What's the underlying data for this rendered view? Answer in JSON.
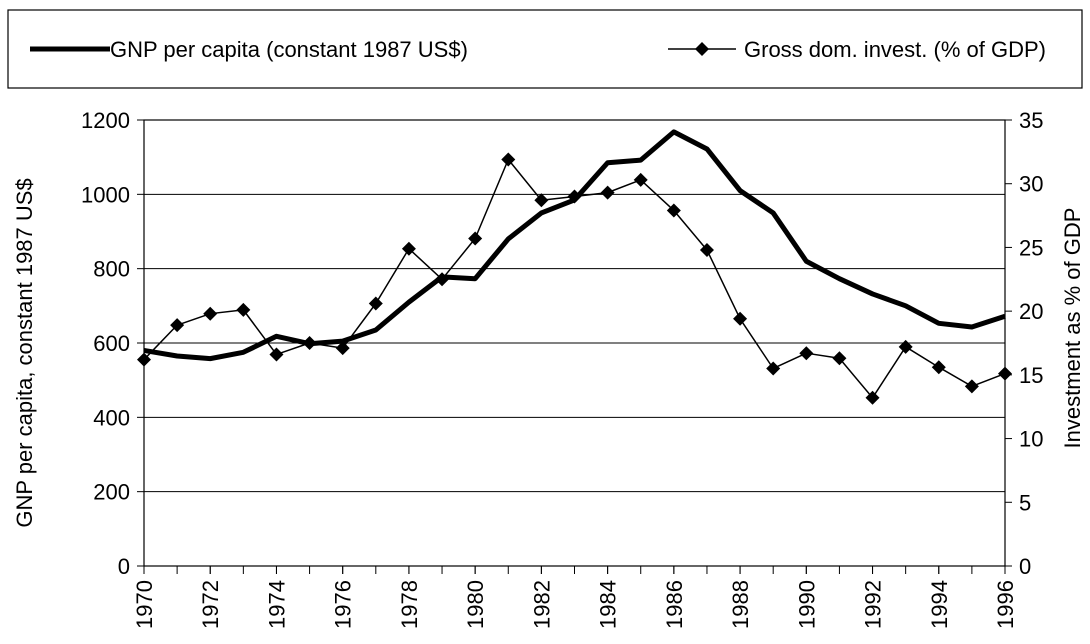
{
  "chart_data": {
    "type": "line",
    "x": [
      1970,
      1971,
      1972,
      1973,
      1974,
      1975,
      1976,
      1977,
      1978,
      1979,
      1980,
      1981,
      1982,
      1983,
      1984,
      1985,
      1986,
      1987,
      1988,
      1989,
      1990,
      1991,
      1992,
      1993,
      1994,
      1995,
      1996
    ],
    "series": [
      {
        "name": "GNP per capita (constant 1987 US$)",
        "color": "#000000",
        "values": [
          580,
          565,
          558,
          575,
          618,
          598,
          605,
          635,
          710,
          778,
          773,
          880,
          950,
          985,
          1085,
          1092,
          1168,
          1122,
          1010,
          950,
          820,
          773,
          732,
          700,
          653,
          643,
          672
        ]
      },
      {
        "name": "Gross dom. invest. (% of GDP)",
        "color": "#000000",
        "axis": "y2",
        "marker": "diamond",
        "values": [
          16.2,
          18.9,
          19.8,
          20.1,
          16.6,
          17.5,
          17.1,
          20.6,
          24.9,
          22.5,
          25.7,
          31.9,
          28.7,
          29.0,
          29.3,
          30.3,
          27.9,
          24.8,
          19.4,
          15.5,
          16.7,
          16.3,
          13.2,
          17.2,
          15.6,
          14.1,
          15.1
        ]
      }
    ],
    "xlim": [
      1970,
      1996
    ],
    "xticks": [
      1970,
      1972,
      1974,
      1976,
      1978,
      1980,
      1982,
      1984,
      1986,
      1988,
      1990,
      1992,
      1994,
      1996
    ],
    "ylim": [
      0,
      1200
    ],
    "yticks": [
      0,
      200,
      400,
      600,
      800,
      1000,
      1200
    ],
    "y2lim": [
      0,
      35
    ],
    "y2ticks": [
      0,
      5,
      10,
      15,
      20,
      25,
      30,
      35
    ],
    "ylabel": "GNP per capita, constant 1987 US$",
    "y2label": "Investment as % of GDP",
    "legend": "top",
    "grid": true
  }
}
